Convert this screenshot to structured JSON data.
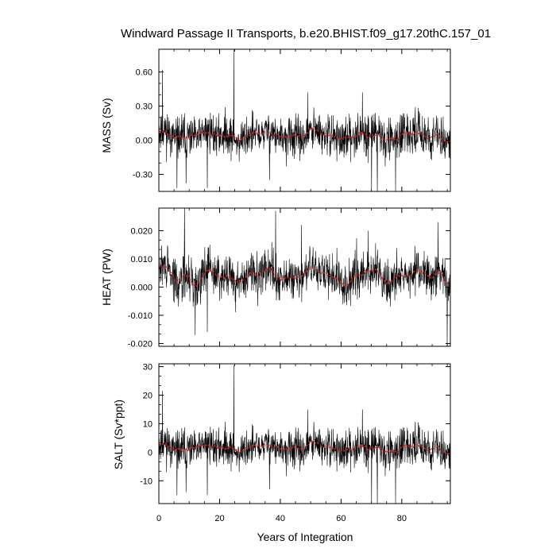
{
  "figure": {
    "title": "Windward Passage II Transports, b.e20.BHIST.f09_g17.20thC.157_01",
    "xlabel": "Years of Integration"
  },
  "colors": {
    "raw": "#000000",
    "smooth": "#dd2222",
    "frame": "#000000",
    "background": "#ffffff"
  },
  "chart_data": [
    {
      "type": "line",
      "ylabel": "MASS (Sv)",
      "xlim": [
        0,
        96
      ],
      "ylim": [
        -0.45,
        0.8
      ],
      "yticks": [
        -0.3,
        0,
        0.3,
        0.6
      ],
      "ytick_labels": [
        "-0.30",
        "0.00",
        "0.30",
        "0.60"
      ],
      "xticks": [
        0,
        20,
        40,
        60,
        80
      ],
      "xtick_labels": [],
      "series_summary": {
        "mean": 0.04,
        "noise_std": 0.09,
        "smooth_amplitude": 0.035,
        "seed": 11,
        "spikes": [
          {
            "x": 24.7,
            "y": 0.8
          },
          {
            "x": 1.2,
            "y": 0.62
          },
          {
            "x": 6.0,
            "y": -0.42
          },
          {
            "x": 9.0,
            "y": -0.38
          },
          {
            "x": 16.0,
            "y": -0.42
          },
          {
            "x": 36.5,
            "y": -0.35
          },
          {
            "x": 49.0,
            "y": 0.42
          },
          {
            "x": 67.0,
            "y": 0.42
          },
          {
            "x": 70.0,
            "y": -0.45
          },
          {
            "x": 72.0,
            "y": -0.45
          },
          {
            "x": 78.0,
            "y": -0.45
          }
        ]
      }
    },
    {
      "type": "line",
      "ylabel": "HEAT (PW)",
      "xlim": [
        0,
        96
      ],
      "ylim": [
        -0.021,
        0.028
      ],
      "yticks": [
        -0.02,
        -0.01,
        0,
        0.01,
        0.02
      ],
      "ytick_labels": [
        "-0.020",
        "-0.010",
        "0.000",
        "0.010",
        "0.020"
      ],
      "xticks": [
        0,
        20,
        40,
        60,
        80
      ],
      "xtick_labels": [],
      "series_summary": {
        "mean": 0.004,
        "noise_std": 0.004,
        "smooth_amplitude": 0.0025,
        "seed": 29,
        "spikes": [
          {
            "x": 8.5,
            "y": 0.028
          },
          {
            "x": 12.0,
            "y": -0.017
          },
          {
            "x": 16.0,
            "y": -0.016
          },
          {
            "x": 38.5,
            "y": 0.027
          },
          {
            "x": 47.0,
            "y": 0.022
          },
          {
            "x": 69.0,
            "y": 0.02
          },
          {
            "x": 92.0,
            "y": 0.023
          },
          {
            "x": 95.0,
            "y": -0.021
          }
        ]
      }
    },
    {
      "type": "line",
      "ylabel": "SALT (Sv*ppt)",
      "xlim": [
        0,
        96
      ],
      "ylim": [
        -18,
        31
      ],
      "yticks": [
        -10,
        0,
        10,
        20,
        30
      ],
      "ytick_labels": [
        "-10",
        "0",
        "10",
        "20",
        "30"
      ],
      "xticks": [
        0,
        20,
        40,
        60,
        80
      ],
      "xtick_labels": [
        "0",
        "20",
        "40",
        "60",
        "80"
      ],
      "series_summary": {
        "mean": 1.5,
        "noise_std": 3.3,
        "smooth_amplitude": 1.3,
        "seed": 11,
        "spikes": [
          {
            "x": 24.7,
            "y": 30.5
          },
          {
            "x": 1.2,
            "y": 21.5
          },
          {
            "x": 6.0,
            "y": -15
          },
          {
            "x": 9.0,
            "y": -14
          },
          {
            "x": 16.0,
            "y": -15
          },
          {
            "x": 36.5,
            "y": -13
          },
          {
            "x": 49.0,
            "y": 15
          },
          {
            "x": 67.0,
            "y": 15
          },
          {
            "x": 70.0,
            "y": -18
          },
          {
            "x": 72.0,
            "y": -18
          },
          {
            "x": 78.0,
            "y": -18
          }
        ]
      }
    }
  ]
}
